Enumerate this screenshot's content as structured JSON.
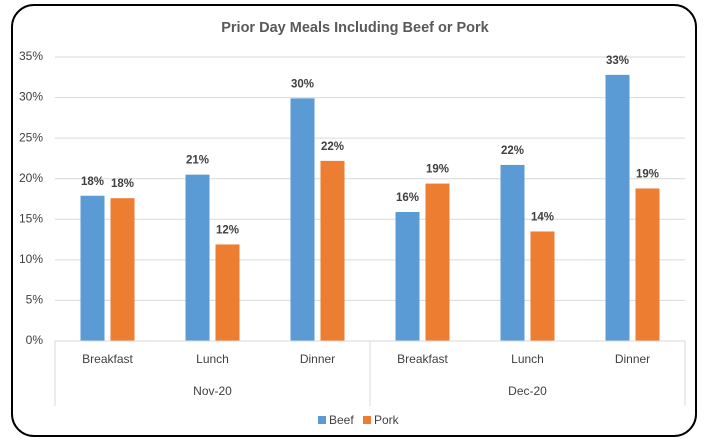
{
  "chart_data": {
    "type": "bar",
    "title": "Prior Day Meals Including Beef or Pork",
    "categories": [
      "Breakfast",
      "Lunch",
      "Dinner",
      "Breakfast",
      "Lunch",
      "Dinner"
    ],
    "groups": [
      "Nov-20",
      "Dec-20"
    ],
    "series": [
      {
        "name": "Beef",
        "color": "#5b9bd5",
        "values": [
          17.9,
          20.5,
          29.9,
          15.9,
          21.7,
          32.8
        ],
        "value_labels": [
          "18%",
          "21%",
          "30%",
          "16%",
          "22%",
          "33%"
        ]
      },
      {
        "name": "Pork",
        "color": "#ed7d31",
        "values": [
          17.6,
          11.9,
          22.2,
          19.4,
          13.5,
          18.8
        ],
        "value_labels": [
          "18%",
          "12%",
          "22%",
          "19%",
          "14%",
          "19%"
        ]
      }
    ],
    "ylim": [
      0,
      35
    ],
    "yticks": [
      {
        "value": 0,
        "label": "0%"
      },
      {
        "value": 5,
        "label": "5%"
      },
      {
        "value": 10,
        "label": "10%"
      },
      {
        "value": 15,
        "label": "15%"
      },
      {
        "value": 20,
        "label": "20%"
      },
      {
        "value": 25,
        "label": "25%"
      },
      {
        "value": 30,
        "label": "30%"
      },
      {
        "value": 35,
        "label": "35%"
      }
    ],
    "grid": true,
    "legend": "bottom"
  }
}
